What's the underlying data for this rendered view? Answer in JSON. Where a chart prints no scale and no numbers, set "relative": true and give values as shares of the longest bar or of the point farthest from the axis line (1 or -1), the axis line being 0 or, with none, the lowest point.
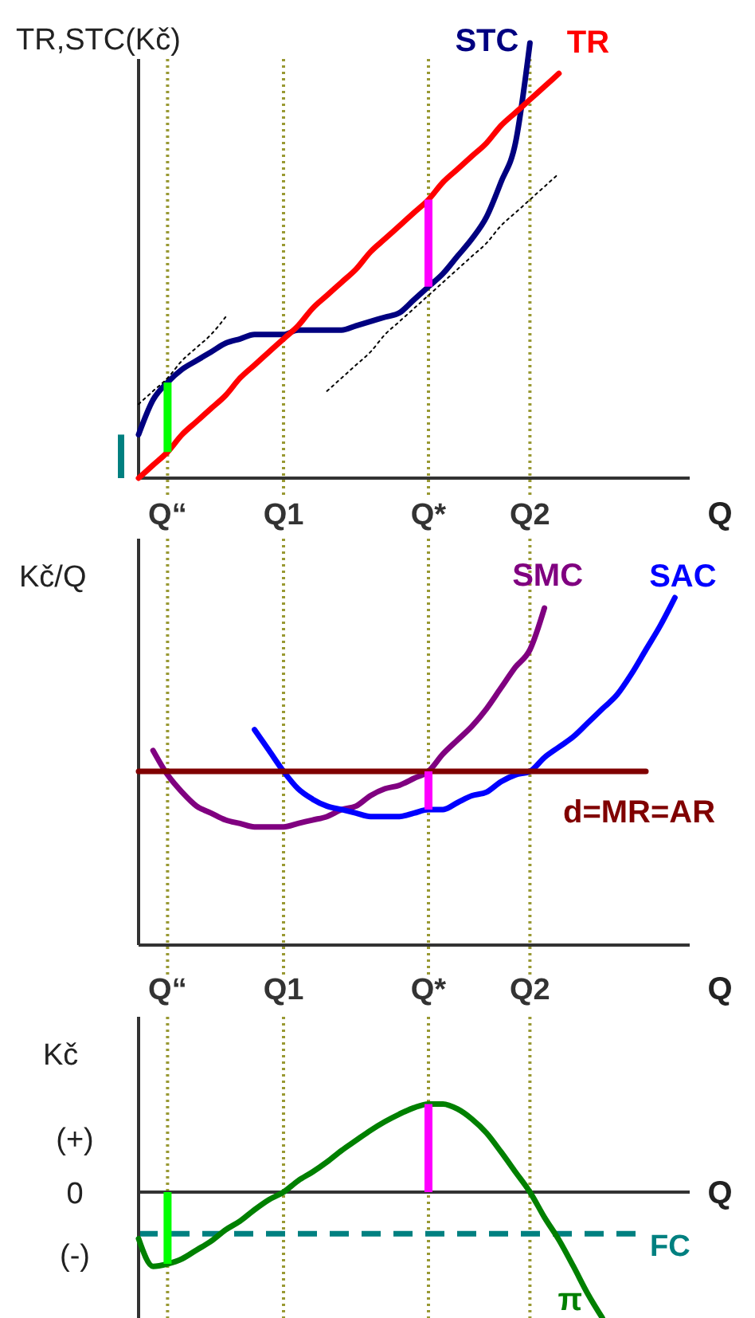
{
  "chart_data": [
    {
      "type": "line",
      "relative": true,
      "ylabel": "TR,STC(Kč)",
      "xlabel": "Q",
      "categories": [
        null,
        null,
        "Q“",
        null,
        null,
        null,
        null,
        null,
        null,
        null,
        "Q1",
        null,
        null,
        null,
        null,
        null,
        null,
        null,
        null,
        null,
        "Q*",
        null,
        null,
        null,
        null,
        null,
        null,
        "Q2",
        null,
        null,
        null,
        null,
        null,
        null,
        null,
        null,
        null,
        null,
        null
      ],
      "series": [
        {
          "name": "STC",
          "color": "#000080",
          "values": [
            0.1,
            0.18,
            0.22,
            0.25,
            0.27,
            0.29,
            0.31,
            0.32,
            0.33,
            0.33,
            0.33,
            0.34,
            0.34,
            0.34,
            0.34,
            0.35,
            0.36,
            0.37,
            0.38,
            0.41,
            0.44,
            0.47,
            0.51,
            0.55,
            0.6,
            0.68,
            0.77,
            1.0,
            null,
            null,
            null,
            null,
            null,
            null,
            null,
            null,
            null,
            null,
            null
          ]
        },
        {
          "name": "TR",
          "color": "#ff0000",
          "values": [
            0,
            0.03,
            0.06,
            0.1,
            0.13,
            0.16,
            0.19,
            0.23,
            0.26,
            0.29,
            0.32,
            0.35,
            0.39,
            0.42,
            0.45,
            0.48,
            0.52,
            0.55,
            0.58,
            0.61,
            0.64,
            0.68,
            0.71,
            0.74,
            0.77,
            0.81,
            0.84,
            0.87,
            0.9,
            0.93,
            null,
            null,
            null,
            null,
            null,
            null,
            null,
            null,
            null
          ]
        },
        {
          "color": "#000000",
          "line_style": "dotted",
          "values": [
            0.17,
            0.2,
            0.23,
            0.27,
            0.3,
            0.33,
            0.37,
            null,
            null,
            null,
            null,
            null,
            null,
            null,
            null,
            null,
            null,
            null,
            null,
            null,
            null,
            null,
            null,
            null,
            null,
            null,
            null,
            null,
            null,
            null,
            null,
            null,
            null,
            null,
            null,
            null,
            null,
            null,
            null
          ]
        },
        {
          "color": "#000000",
          "line_style": "dotted",
          "values": [
            null,
            null,
            null,
            null,
            null,
            null,
            null,
            null,
            null,
            null,
            null,
            null,
            null,
            0.2,
            0.23,
            0.26,
            0.29,
            0.33,
            0.36,
            0.39,
            0.42,
            0.45,
            0.48,
            0.51,
            0.54,
            0.58,
            0.61,
            0.64,
            0.67,
            0.7,
            null,
            null,
            null,
            null,
            null,
            null,
            null,
            null,
            null
          ]
        },
        {
          "type": "line",
          "color": "#00ff00",
          "x": [
            "Q“",
            "Q“"
          ],
          "values": [
            0.06,
            0.22
          ]
        },
        {
          "type": "line",
          "color": "#ff00ff",
          "x": [
            "Q*",
            "Q*"
          ],
          "values": [
            0.44,
            0.64
          ]
        }
      ],
      "ref_lines": [
        {
          "axis": "x",
          "value": "Q“",
          "color": "#999933",
          "line_style": "dotted"
        },
        {
          "axis": "x",
          "value": "Q1",
          "color": "#999933",
          "line_style": "dotted"
        },
        {
          "axis": "x",
          "value": "Q*",
          "color": "#999933",
          "line_style": "dotted"
        },
        {
          "axis": "x",
          "value": "Q2",
          "color": "#999933",
          "line_style": "dotted"
        }
      ]
    },
    {
      "type": "line",
      "relative": true,
      "ylabel": "Kč/Q",
      "xlabel": "Q",
      "categories": [
        null,
        null,
        "Q“",
        null,
        null,
        null,
        null,
        null,
        null,
        null,
        "Q1",
        null,
        null,
        null,
        null,
        null,
        null,
        null,
        null,
        null,
        "Q*",
        null,
        null,
        null,
        null,
        null,
        null,
        "Q2",
        null,
        null,
        null,
        null,
        null,
        null,
        null,
        null,
        null,
        null,
        null
      ],
      "series": [
        {
          "name": "SMC",
          "color": "#800080",
          "values": [
            null,
            0.56,
            0.49,
            0.44,
            0.4,
            0.38,
            0.36,
            0.35,
            0.34,
            0.34,
            0.34,
            0.35,
            0.36,
            0.37,
            0.39,
            0.4,
            0.43,
            0.45,
            0.46,
            0.48,
            0.5,
            0.55,
            0.59,
            0.63,
            0.68,
            0.74,
            0.8,
            0.85,
            0.97,
            null,
            null,
            null,
            null,
            null,
            null,
            null,
            null,
            null,
            null
          ]
        },
        {
          "name": "SAC",
          "color": "#0000ff",
          "values": [
            null,
            null,
            null,
            null,
            null,
            null,
            null,
            null,
            0.62,
            0.56,
            0.5,
            0.45,
            0.42,
            0.4,
            0.39,
            0.38,
            0.37,
            0.37,
            0.37,
            0.38,
            0.39,
            0.39,
            0.41,
            0.43,
            0.44,
            0.47,
            0.49,
            0.5,
            0.54,
            0.57,
            0.6,
            0.64,
            0.68,
            0.72,
            0.78,
            0.85,
            0.92,
            1.0,
            null
          ]
        },
        {
          "name": "d=MR=AR",
          "color": "#800000",
          "values": [
            0.5,
            0.5,
            0.5,
            0.5,
            0.5,
            0.5,
            0.5,
            0.5,
            0.5,
            0.5,
            0.5,
            0.5,
            0.5,
            0.5,
            0.5,
            0.5,
            0.5,
            0.5,
            0.5,
            0.5,
            0.5,
            0.5,
            0.5,
            0.5,
            0.5,
            0.5,
            0.5,
            0.5,
            0.5,
            0.5,
            0.5,
            0.5,
            0.5,
            0.5,
            0.5,
            0.5,
            null,
            null,
            null
          ]
        },
        {
          "type": "line",
          "color": "#ff00ff",
          "x": [
            "Q*",
            "Q*"
          ],
          "values": [
            0.39,
            0.5
          ]
        }
      ],
      "ref_lines": [
        {
          "axis": "x",
          "value": "Q“",
          "color": "#999933",
          "line_style": "dotted"
        },
        {
          "axis": "x",
          "value": "Q1",
          "color": "#999933",
          "line_style": "dotted"
        },
        {
          "axis": "x",
          "value": "Q*",
          "color": "#999933",
          "line_style": "dotted"
        },
        {
          "axis": "x",
          "value": "Q2",
          "color": "#999933",
          "line_style": "dotted"
        }
      ]
    },
    {
      "type": "line",
      "relative": true,
      "ylabel": "Kč",
      "xlabel": "Q",
      "tick_labels": false,
      "annotations": [
        "(+)",
        "0",
        "(-)"
      ],
      "categories": [
        null,
        null,
        "Q“",
        null,
        null,
        null,
        null,
        null,
        null,
        null,
        "Q1",
        null,
        null,
        null,
        null,
        null,
        null,
        null,
        null,
        null,
        "Q*",
        null,
        null,
        null,
        null,
        null,
        null,
        "Q2",
        null,
        null,
        null,
        null,
        null,
        null,
        null,
        null,
        null,
        null,
        null
      ],
      "series": [
        {
          "name": "π",
          "color": "#008000",
          "values": [
            -0.37,
            -0.59,
            -0.57,
            -0.53,
            -0.46,
            -0.39,
            -0.3,
            -0.23,
            -0.14,
            -0.06,
            0,
            0.09,
            0.16,
            0.24,
            0.33,
            0.41,
            0.49,
            0.56,
            0.62,
            0.67,
            0.7,
            0.7,
            0.66,
            0.58,
            0.47,
            0.32,
            0.16,
            0,
            -0.2,
            -0.38,
            -0.59,
            -0.81,
            -1,
            null,
            null,
            null,
            null,
            null,
            null
          ]
        },
        {
          "type": "line",
          "color": "#00ff00",
          "x": [
            "Q“",
            "Q“"
          ],
          "values": [
            -0.57,
            0
          ]
        },
        {
          "type": "line",
          "color": "#ff00ff",
          "x": [
            "Q*",
            "Q*"
          ],
          "values": [
            0,
            0.7
          ]
        }
      ],
      "ref_lines": [
        {
          "axis": "x",
          "value": "Q“",
          "color": "#999933",
          "line_style": "dotted"
        },
        {
          "axis": "x",
          "value": "Q1",
          "color": "#999933",
          "line_style": "dotted"
        },
        {
          "axis": "x",
          "value": "Q*",
          "color": "#999933",
          "line_style": "dotted"
        },
        {
          "axis": "x",
          "value": "Q2",
          "color": "#999933",
          "line_style": "dotted"
        },
        {
          "axis": "y",
          "value": -0.33,
          "label": "FC",
          "color": "#008080",
          "line_style": "dashed"
        }
      ]
    }
  ]
}
